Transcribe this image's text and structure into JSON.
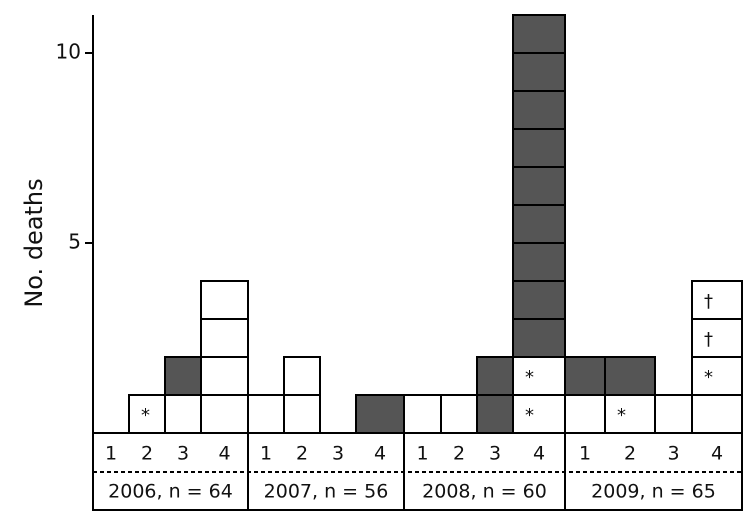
{
  "chart_data": {
    "type": "stacked-box",
    "y_label": "No. deaths",
    "ylim": [
      0,
      11
    ],
    "yticks": [
      5,
      10
    ],
    "years": [
      {
        "label": "2006, n = 64",
        "quarters": [
          {
            "label": "1",
            "value": 0,
            "boxes": []
          },
          {
            "label": "2",
            "value": 1,
            "boxes": [
              {
                "color": "#ffffff",
                "symbol": "*"
              }
            ]
          },
          {
            "label": "3",
            "value": 2,
            "boxes": [
              {
                "color": "#ffffff"
              },
              {
                "color": "#555555"
              }
            ]
          },
          {
            "label": "4",
            "value": 4,
            "boxes": [
              {
                "color": "#ffffff"
              },
              {
                "color": "#ffffff"
              },
              {
                "color": "#ffffff"
              },
              {
                "color": "#ffffff"
              }
            ]
          }
        ]
      },
      {
        "label": "2007, n = 56",
        "quarters": [
          {
            "label": "1",
            "value": 1,
            "boxes": [
              {
                "color": "#ffffff"
              }
            ]
          },
          {
            "label": "2",
            "value": 2,
            "boxes": [
              {
                "color": "#ffffff"
              },
              {
                "color": "#ffffff"
              }
            ]
          },
          {
            "label": "3",
            "value": 0,
            "boxes": []
          },
          {
            "label": "4",
            "value": 1,
            "boxes": [
              {
                "color": "#555555"
              }
            ]
          }
        ]
      },
      {
        "label": "2008, n = 60",
        "quarters": [
          {
            "label": "1",
            "value": 1,
            "boxes": [
              {
                "color": "#ffffff"
              }
            ]
          },
          {
            "label": "2",
            "value": 1,
            "boxes": [
              {
                "color": "#ffffff"
              }
            ]
          },
          {
            "label": "3",
            "value": 2,
            "boxes": [
              {
                "color": "#555555"
              },
              {
                "color": "#555555"
              }
            ]
          },
          {
            "label": "4",
            "value": 11,
            "boxes": [
              {
                "color": "#ffffff",
                "symbol": "*"
              },
              {
                "color": "#ffffff",
                "symbol": "*"
              },
              {
                "color": "#555555"
              },
              {
                "color": "#555555"
              },
              {
                "color": "#555555"
              },
              {
                "color": "#555555"
              },
              {
                "color": "#555555"
              },
              {
                "color": "#555555"
              },
              {
                "color": "#555555"
              },
              {
                "color": "#555555"
              },
              {
                "color": "#555555"
              }
            ]
          }
        ]
      },
      {
        "label": "2009, n = 65",
        "quarters": [
          {
            "label": "1",
            "value": 2,
            "boxes": [
              {
                "color": "#ffffff"
              },
              {
                "color": "#555555"
              }
            ]
          },
          {
            "label": "2",
            "value": 2,
            "boxes": [
              {
                "color": "#ffffff",
                "symbol": "*"
              },
              {
                "color": "#555555"
              }
            ]
          },
          {
            "label": "3",
            "value": 1,
            "boxes": [
              {
                "color": "#ffffff"
              }
            ]
          },
          {
            "label": "4",
            "value": 4,
            "boxes": [
              {
                "color": "#ffffff"
              },
              {
                "color": "#ffffff",
                "symbol": "*"
              },
              {
                "color": "#ffffff",
                "symbol": "†"
              },
              {
                "color": "#ffffff",
                "symbol": "†"
              }
            ]
          }
        ]
      }
    ]
  }
}
